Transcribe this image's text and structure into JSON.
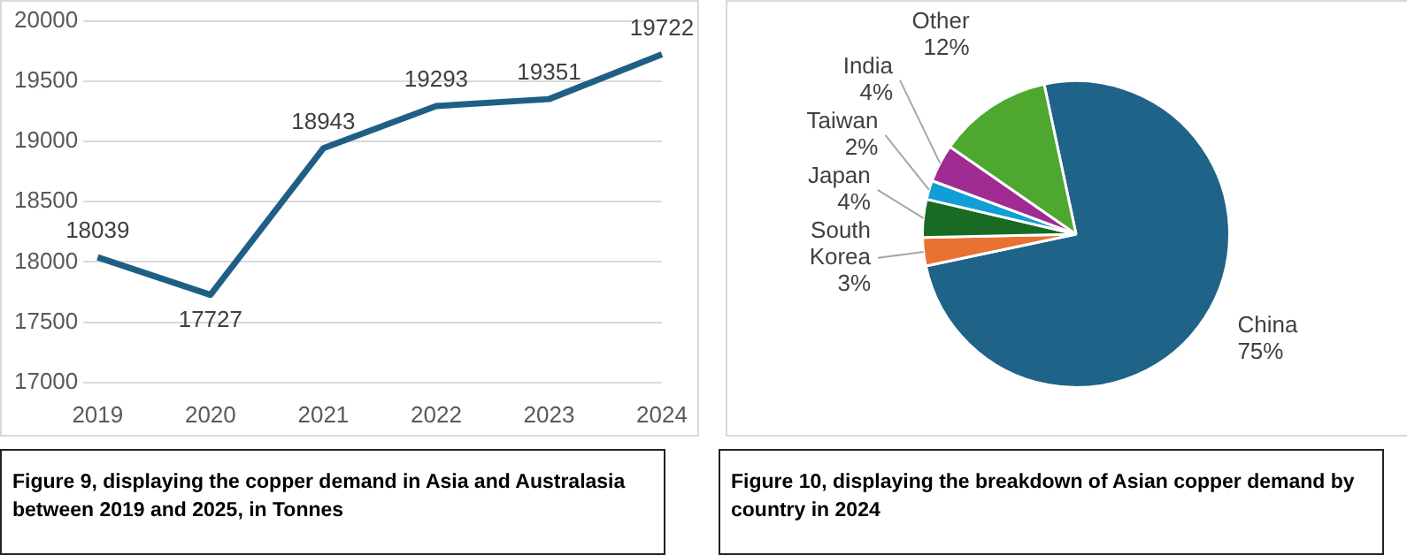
{
  "chart_data": [
    {
      "type": "line",
      "title": "Figure 9, displaying the copper demand in Asia and Australasia  between 2019 and 2025, in Tonnes",
      "categories": [
        "2019",
        "2020",
        "2021",
        "2022",
        "2023",
        "2024"
      ],
      "series": [
        {
          "color": "#1f5f85",
          "values": [
            18039,
            17727,
            18943,
            19293,
            19351,
            19722
          ]
        }
      ],
      "ylim": [
        17000,
        20000
      ],
      "yticks": [
        17000,
        17500,
        18000,
        18500,
        19000,
        19500,
        20000
      ],
      "grid": "y",
      "legend": false,
      "marker": "none",
      "data_labels": true
    },
    {
      "type": "pie",
      "title": "Figure 10, displaying the breakdown of Asian copper demand by country in 2024",
      "categories": [
        "China",
        "South Korea",
        "Japan",
        "Taiwan",
        "India",
        "Other"
      ],
      "values": [
        75,
        3,
        4,
        2,
        4,
        12
      ],
      "colors": [
        "#1f6388",
        "#e97132",
        "#196b24",
        "#0f9ed5",
        "#a02b93",
        "#4ea72e"
      ],
      "legend": false,
      "value_labels": [
        "75%",
        "3%",
        "4%",
        "2%",
        "4%",
        "12%"
      ]
    }
  ]
}
